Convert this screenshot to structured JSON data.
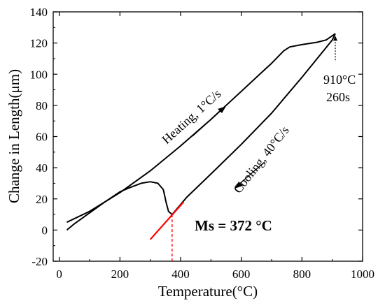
{
  "chart_data": {
    "type": "line",
    "title": "",
    "xlabel": "Temperature(°C)",
    "ylabel": "Change in Length(μm)",
    "xlim": [
      -20,
      1000
    ],
    "ylim": [
      -20,
      140
    ],
    "xticks": [
      0,
      200,
      400,
      600,
      800,
      1000
    ],
    "yticks": [
      -20,
      0,
      20,
      40,
      60,
      80,
      100,
      120,
      140
    ],
    "grid": false,
    "legend": "none",
    "series": [
      {
        "color": "#000000",
        "points": [
          [
            25,
            5
          ],
          [
            100,
            12
          ],
          [
            200,
            24
          ],
          [
            300,
            38
          ],
          [
            400,
            54
          ],
          [
            500,
            71
          ],
          [
            600,
            89
          ],
          [
            700,
            107
          ],
          [
            720,
            111
          ],
          [
            740,
            115
          ],
          [
            760,
            117.5
          ],
          [
            800,
            119
          ],
          [
            850,
            120.5
          ],
          [
            880,
            122
          ],
          [
            910,
            126
          ]
        ]
      },
      {
        "color": "#000000",
        "points": [
          [
            910,
            126
          ],
          [
            900,
            122
          ],
          [
            800,
            98
          ],
          [
            700,
            75
          ],
          [
            600,
            55
          ],
          [
            500,
            36
          ],
          [
            420,
            21
          ],
          [
            372,
            10
          ],
          [
            360,
            12
          ],
          [
            352,
            18
          ],
          [
            343,
            26
          ],
          [
            325,
            30
          ],
          [
            300,
            31
          ],
          [
            270,
            30
          ],
          [
            230,
            27
          ],
          [
            200,
            24.5
          ],
          [
            150,
            18
          ],
          [
            100,
            11
          ],
          [
            50,
            4
          ],
          [
            25,
            0
          ]
        ]
      },
      {
        "color": "#ff0000",
        "points": [
          [
            300,
            -6
          ],
          [
            410,
            18
          ]
        ]
      }
    ],
    "annotations": {
      "heating": "Heating, 1°C/s",
      "cooling": "Cooling, 40°C/s",
      "hold_temp": "910°C",
      "hold_time": "260s",
      "ms": "Ms = 372 °C"
    },
    "ms_temperature": 372,
    "hold_point": [
      910,
      126
    ]
  }
}
